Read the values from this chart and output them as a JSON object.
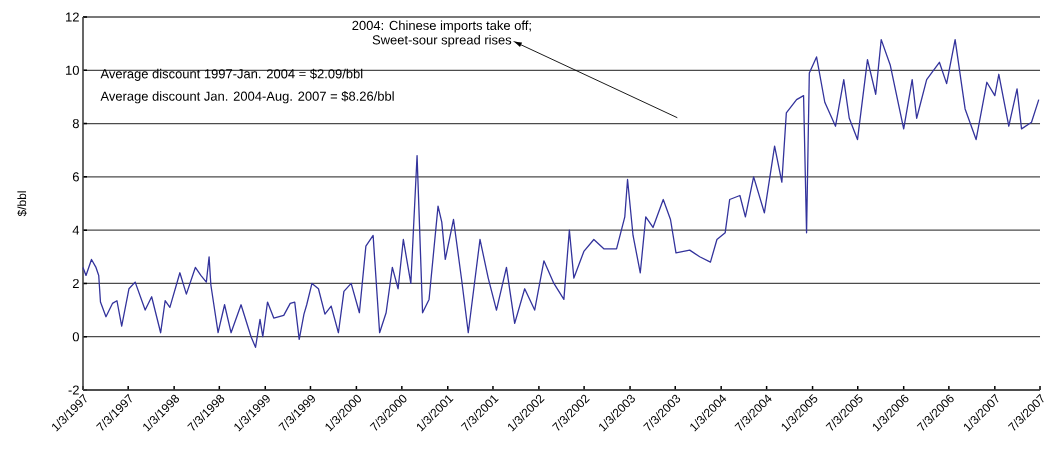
{
  "chart_data": {
    "type": "line",
    "ylabel": "$/bbl",
    "color": "#33339c",
    "grid": "y",
    "marker": "none",
    "line_style": "solid",
    "xlim": [
      "1997-01-03",
      "2007-07-03"
    ],
    "ylim": [
      -2,
      12
    ],
    "yticks": [
      -2,
      0,
      2,
      4,
      6,
      8,
      10,
      12
    ],
    "xticks": [
      {
        "value": "1997-01-03",
        "label": "1/3/1997"
      },
      {
        "value": "1997-07-03",
        "label": "7/3/1997"
      },
      {
        "value": "1998-01-03",
        "label": "1/3/1998"
      },
      {
        "value": "1998-07-03",
        "label": "7/3/1998"
      },
      {
        "value": "1999-01-03",
        "label": "1/3/1999"
      },
      {
        "value": "1999-07-03",
        "label": "7/3/1999"
      },
      {
        "value": "2000-01-03",
        "label": "1/3/2000"
      },
      {
        "value": "2000-07-03",
        "label": "7/3/2000"
      },
      {
        "value": "2001-01-03",
        "label": "1/3/2001"
      },
      {
        "value": "2001-07-03",
        "label": "7/3/2001"
      },
      {
        "value": "2002-01-03",
        "label": "1/3/2002"
      },
      {
        "value": "2002-07-03",
        "label": "7/3/2002"
      },
      {
        "value": "2003-01-03",
        "label": "1/3/2003"
      },
      {
        "value": "2003-07-03",
        "label": "7/3/2003"
      },
      {
        "value": "2004-01-03",
        "label": "1/3/2004"
      },
      {
        "value": "2004-07-03",
        "label": "7/3/2004"
      },
      {
        "value": "2005-01-03",
        "label": "1/3/2005"
      },
      {
        "value": "2005-07-03",
        "label": "7/3/2005"
      },
      {
        "value": "2006-01-03",
        "label": "1/3/2006"
      },
      {
        "value": "2006-07-03",
        "label": "7/3/2006"
      },
      {
        "value": "2007-01-03",
        "label": "1/3/2007"
      },
      {
        "value": "2007-07-03",
        "label": "7/3/2007"
      }
    ],
    "x": [
      "1997-01-03",
      "1997-01-15",
      "1997-02-06",
      "1997-02-24",
      "1997-03-07",
      "1997-03-14",
      "1997-04-05",
      "1997-05-01",
      "1997-05-19",
      "1997-06-07",
      "1997-07-06",
      "1997-07-31",
      "1997-09-09",
      "1997-10-05",
      "1997-11-10",
      "1997-11-28",
      "1997-12-17",
      "1998-01-26",
      "1998-02-21",
      "1998-03-29",
      "1998-04-20",
      "1998-05-12",
      "1998-05-23",
      "1998-05-30",
      "1998-06-28",
      "1998-07-24",
      "1998-08-19",
      "1998-09-28",
      "1998-11-07",
      "1998-11-25",
      "1998-12-13",
      "1998-12-24",
      "1999-01-12",
      "1999-02-06",
      "1999-03-18",
      "1999-04-13",
      "1999-05-01",
      "1999-05-19",
      "1999-06-07",
      "1999-06-18",
      "1999-07-09",
      "1999-08-04",
      "1999-08-30",
      "1999-09-24",
      "1999-10-23",
      "1999-11-14",
      "1999-12-13",
      "2000-01-15",
      "2000-02-10",
      "2000-03-10",
      "2000-04-05",
      "2000-05-01",
      "2000-05-26",
      "2000-06-18",
      "2000-07-09",
      "2000-08-08",
      "2000-09-02",
      "2000-09-24",
      "2000-10-20",
      "2000-11-25",
      "2000-12-10",
      "2000-12-24",
      "2001-01-26",
      "2001-02-28",
      "2001-03-26",
      "2001-05-12",
      "2001-06-14",
      "2001-07-17",
      "2001-08-26",
      "2001-09-28",
      "2001-11-07",
      "2001-12-17",
      "2002-01-23",
      "2002-03-04",
      "2002-04-13",
      "2002-05-05",
      "2002-05-23",
      "2002-07-02",
      "2002-08-11",
      "2002-09-20",
      "2002-11-10",
      "2002-12-13",
      "2002-12-24",
      "2003-01-15",
      "2003-02-13",
      "2003-03-07",
      "2003-04-05",
      "2003-05-16",
      "2003-06-14",
      "2003-07-06",
      "2003-08-30",
      "2003-10-09",
      "2003-11-21",
      "2003-12-17",
      "2004-01-19",
      "2004-02-06",
      "2004-03-18",
      "2004-04-09",
      "2004-05-12",
      "2004-06-24",
      "2004-08-04",
      "2004-09-02",
      "2004-09-20",
      "2004-10-31",
      "2004-11-28",
      "2004-12-10",
      "2004-12-21",
      "2005-01-19",
      "2005-02-21",
      "2005-04-05",
      "2005-05-08",
      "2005-05-30",
      "2005-07-02",
      "2005-08-11",
      "2005-09-13",
      "2005-10-05",
      "2005-11-10",
      "2006-01-03",
      "2006-02-06",
      "2006-02-24",
      "2006-04-05",
      "2006-05-26",
      "2006-06-24",
      "2006-07-28",
      "2006-09-06",
      "2006-10-20",
      "2006-12-02",
      "2007-01-03",
      "2007-01-19",
      "2007-02-28",
      "2007-04-02",
      "2007-04-20",
      "2007-05-30",
      "2007-06-28"
    ],
    "values": [
      2.6,
      2.3,
      2.9,
      2.6,
      2.3,
      1.3,
      0.75,
      1.25,
      1.35,
      0.4,
      1.8,
      2.05,
      1.0,
      1.5,
      0.15,
      1.35,
      1.1,
      2.4,
      1.6,
      2.6,
      2.3,
      2.05,
      3.0,
      1.95,
      0.15,
      1.2,
      0.15,
      1.2,
      0.0,
      -0.4,
      0.65,
      0.0,
      1.3,
      0.7,
      0.8,
      1.25,
      1.3,
      -0.1,
      0.85,
      1.2,
      2.0,
      1.8,
      0.85,
      1.15,
      0.15,
      1.7,
      2.0,
      0.9,
      3.4,
      3.8,
      0.15,
      0.9,
      2.6,
      1.8,
      3.65,
      2.0,
      6.8,
      0.9,
      1.4,
      4.9,
      4.3,
      2.9,
      4.4,
      2.1,
      0.15,
      3.65,
      2.2,
      1.0,
      2.6,
      0.5,
      1.8,
      1.0,
      2.85,
      2.0,
      1.4,
      4.0,
      2.2,
      3.2,
      3.65,
      3.3,
      3.3,
      4.5,
      5.9,
      3.8,
      2.4,
      4.5,
      4.1,
      5.15,
      4.4,
      3.15,
      3.25,
      3.0,
      2.8,
      3.65,
      3.9,
      5.15,
      5.3,
      4.5,
      6.0,
      4.65,
      7.15,
      5.8,
      8.4,
      8.9,
      9.05,
      3.9,
      9.9,
      10.5,
      8.8,
      7.9,
      9.65,
      8.2,
      7.4,
      10.4,
      9.1,
      11.15,
      10.2,
      7.8,
      9.65,
      8.2,
      9.65,
      10.3,
      9.5,
      11.15,
      8.55,
      7.4,
      9.55,
      9.05,
      9.85,
      7.9,
      9.3,
      7.8,
      8.05,
      8.9
    ],
    "annotations": [
      "2004: Chinese imports take off;",
      "Sweet-sour spread rises",
      "Average discount 1997-Jan. 2004 = $2.09/bbl",
      "Average discount Jan. 2004-Aug. 2007 = $8.26/bbl"
    ]
  }
}
